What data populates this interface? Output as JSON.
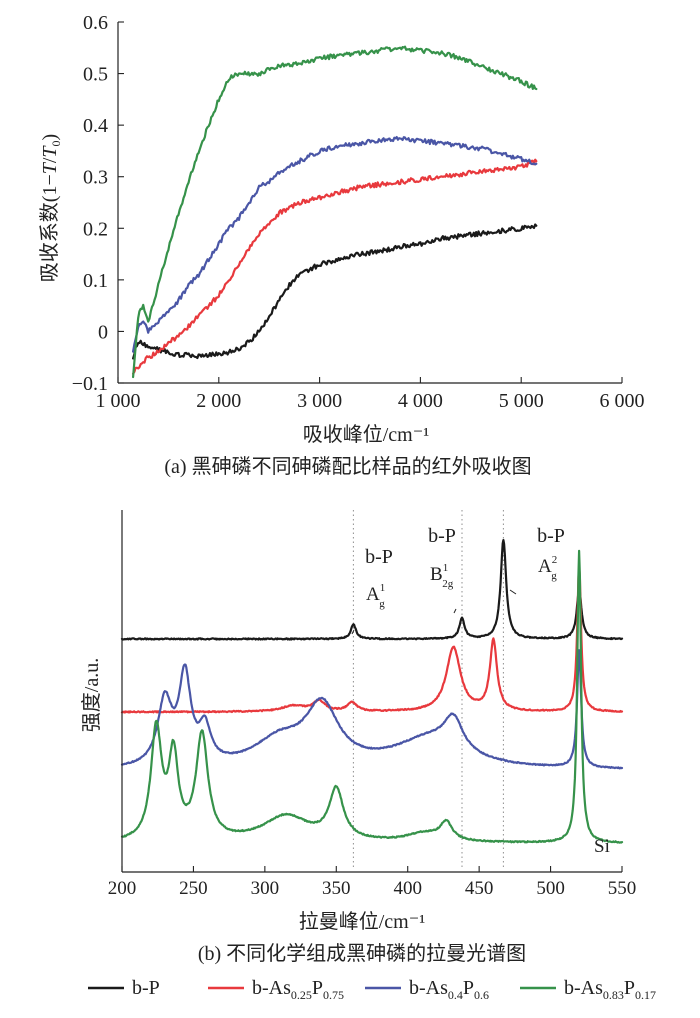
{
  "colors": {
    "black": "#1a1a1a",
    "red": "#e8393d",
    "blue": "#4a56a6",
    "green": "#36924a"
  },
  "chart_data": [
    {
      "type": "line",
      "caption": "(a) 黑砷磷不同砷磷配比样品的红外吸收图",
      "xlabel": "吸收峰位/cm⁻¹",
      "ylabel_prefix": "吸收系数(1−",
      "ylabel_var1": "T",
      "ylabel_slash": "/",
      "ylabel_var2": "T",
      "ylabel_sub": "0",
      "ylabel_suffix": ")",
      "xlim": [
        1000,
        6000
      ],
      "ylim": [
        -0.1,
        0.6
      ],
      "xticks": [
        1000,
        2000,
        3000,
        4000,
        5000,
        6000
      ],
      "xtick_labels": [
        "1 000",
        "2 000",
        "3 000",
        "4 000",
        "5 000",
        "6 000"
      ],
      "yticks": [
        -0.1,
        0,
        0.1,
        0.2,
        0.3,
        0.4,
        0.5,
        0.6
      ],
      "ytick_labels": [
        "−0.1",
        "0",
        "0.1",
        "0.2",
        "0.3",
        "0.4",
        "0.5",
        "0.6"
      ],
      "series": [
        {
          "name": "b-P",
          "color": "#1a1a1a",
          "x": [
            1150,
            1200,
            1300,
            1400,
            1500,
            1600,
            1700,
            1800,
            1900,
            2000,
            2100,
            2200,
            2300,
            2400,
            2500,
            2600,
            2700,
            2800,
            2900,
            3000,
            3200,
            3400,
            3600,
            3800,
            4000,
            4200,
            4400,
            4600,
            4800,
            5000,
            5150
          ],
          "y": [
            -0.05,
            -0.02,
            -0.03,
            -0.035,
            -0.04,
            -0.045,
            -0.045,
            -0.048,
            -0.045,
            -0.045,
            -0.04,
            -0.035,
            -0.02,
            0.0,
            0.03,
            0.06,
            0.09,
            0.11,
            0.12,
            0.13,
            0.14,
            0.15,
            0.155,
            0.165,
            0.17,
            0.18,
            0.185,
            0.19,
            0.195,
            0.2,
            0.205
          ]
        },
        {
          "name": "b-As",
          "color": "#e8393d",
          "x": [
            1150,
            1200,
            1300,
            1400,
            1500,
            1600,
            1700,
            1800,
            1900,
            2000,
            2100,
            2200,
            2300,
            2400,
            2500,
            2600,
            2700,
            2800,
            3000,
            3200,
            3400,
            3600,
            3800,
            4000,
            4200,
            4400,
            4600,
            4800,
            5000,
            5150
          ],
          "y": [
            -0.08,
            -0.07,
            -0.05,
            -0.04,
            -0.02,
            -0.01,
            0.01,
            0.03,
            0.05,
            0.07,
            0.1,
            0.13,
            0.16,
            0.19,
            0.21,
            0.23,
            0.24,
            0.25,
            0.26,
            0.27,
            0.28,
            0.285,
            0.29,
            0.295,
            0.3,
            0.305,
            0.31,
            0.315,
            0.32,
            0.33
          ]
        },
        {
          "name": "b-As",
          "color": "#4a56a6",
          "x": [
            1150,
            1200,
            1250,
            1300,
            1400,
            1500,
            1600,
            1700,
            1800,
            1900,
            2000,
            2100,
            2200,
            2300,
            2400,
            2500,
            2600,
            2700,
            2800,
            3000,
            3200,
            3400,
            3600,
            3800,
            4000,
            4200,
            4400,
            4600,
            4800,
            5000,
            5150
          ],
          "y": [
            -0.04,
            0.01,
            0.02,
            0.0,
            0.02,
            0.04,
            0.06,
            0.09,
            0.11,
            0.14,
            0.17,
            0.2,
            0.22,
            0.25,
            0.28,
            0.29,
            0.31,
            0.32,
            0.33,
            0.35,
            0.36,
            0.365,
            0.37,
            0.375,
            0.37,
            0.365,
            0.36,
            0.355,
            0.345,
            0.335,
            0.325
          ]
        },
        {
          "name": "b-As",
          "color": "#36924a",
          "x": [
            1150,
            1200,
            1250,
            1300,
            1400,
            1500,
            1600,
            1700,
            1800,
            1900,
            2000,
            2100,
            2200,
            2400,
            2600,
            2800,
            3000,
            3200,
            3400,
            3600,
            3800,
            4000,
            4200,
            4400,
            4600,
            4800,
            5000,
            5150
          ],
          "y": [
            -0.09,
            0.03,
            0.05,
            0.02,
            0.09,
            0.16,
            0.23,
            0.29,
            0.35,
            0.4,
            0.45,
            0.49,
            0.5,
            0.5,
            0.515,
            0.52,
            0.53,
            0.535,
            0.54,
            0.545,
            0.55,
            0.545,
            0.54,
            0.53,
            0.515,
            0.5,
            0.485,
            0.47
          ]
        }
      ]
    },
    {
      "type": "line",
      "caption": "(b) 不同化学组成黑砷磷的拉曼光谱图",
      "xlabel": "拉曼峰位/cm⁻¹",
      "ylabel": "强度/a.u.",
      "xlim": [
        200,
        550
      ],
      "xticks": [
        200,
        250,
        300,
        350,
        400,
        450,
        500,
        550
      ],
      "xtick_labels": [
        "200",
        "250",
        "300",
        "350",
        "400",
        "450",
        "500",
        "550"
      ],
      "guide_lines_x": [
        362,
        438,
        467
      ],
      "annotations": [
        {
          "label": "b-P",
          "mode": "A",
          "sup": "1",
          "sub": "g",
          "x": 362
        },
        {
          "label": "b-P",
          "mode": "B",
          "sup": "1",
          "sub": "2g",
          "x": 438
        },
        {
          "label": "b-P",
          "mode": "A",
          "sup": "2",
          "sub": "g",
          "x": 467
        }
      ],
      "si_label": "Si",
      "series": [
        {
          "name": "b-P",
          "color": "#1a1a1a",
          "offset": 0.75,
          "peaks": [
            [
              362,
              0.05,
              2.2
            ],
            [
              438,
              0.07,
              2.2
            ],
            [
              467,
              0.34,
              2.3
            ],
            [
              520,
              0.17,
              2.0
            ]
          ]
        },
        {
          "name": "b-As",
          "color": "#e8393d",
          "offset": 0.5,
          "peaks": [
            [
              320,
              0.02,
              10
            ],
            [
              338,
              0.035,
              5
            ],
            [
              361,
              0.03,
              4
            ],
            [
              432,
              0.22,
              6
            ],
            [
              460,
              0.24,
              3
            ],
            [
              520,
              0.5,
              1.6
            ]
          ]
        },
        {
          "name": "b-As",
          "color": "#4a56a6",
          "offset": 0.3,
          "peaks": [
            [
              230,
              0.22,
              6
            ],
            [
              244,
              0.3,
              5
            ],
            [
              258,
              0.12,
              5
            ],
            [
              310,
              0.09,
              22
            ],
            [
              340,
              0.2,
              14
            ],
            [
              415,
              0.1,
              30
            ],
            [
              432,
              0.11,
              8
            ],
            [
              520,
              0.4,
              1.7
            ]
          ]
        },
        {
          "name": "b-As",
          "color": "#36924a",
          "offset": 0.05,
          "peaks": [
            [
              224,
              0.38,
              4.5
            ],
            [
              236,
              0.28,
              4
            ],
            [
              256,
              0.36,
              5
            ],
            [
              315,
              0.09,
              20
            ],
            [
              350,
              0.17,
              6
            ],
            [
              412,
              0.03,
              15
            ],
            [
              427,
              0.06,
              5
            ],
            [
              520,
              1.0,
              1.6
            ]
          ]
        }
      ]
    }
  ],
  "legend": [
    {
      "label": "b-P",
      "sub1": "",
      "mid": "",
      "sub2": "",
      "color": "#1a1a1a"
    },
    {
      "label": "b-As",
      "sub1": "0.25",
      "mid": "P",
      "sub2": "0.75",
      "color": "#e8393d"
    },
    {
      "label": "b-As",
      "sub1": "0.4",
      "mid": "P",
      "sub2": "0.6",
      "color": "#4a56a6"
    },
    {
      "label": "b-As",
      "sub1": "0.83",
      "mid": "P",
      "sub2": "0.17",
      "color": "#36924a"
    }
  ]
}
